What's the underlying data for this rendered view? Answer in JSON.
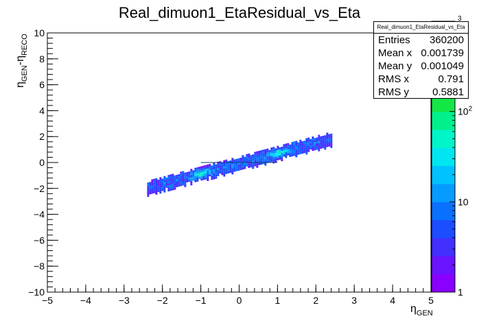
{
  "chart_data": {
    "type": "heatmap",
    "title": "Real_dimuon1_EtaResidual_vs_Eta",
    "xlabel_main": "η",
    "xlabel_sub": "GEN",
    "ylabel_parts": [
      "η",
      "GEN",
      "-η",
      "RECO"
    ],
    "xlim": [
      -5,
      5
    ],
    "ylim": [
      -10,
      10
    ],
    "x_ticks": [
      -5,
      -4,
      -3,
      -2,
      -1,
      0,
      1,
      2,
      3,
      4,
      5
    ],
    "x_tick_labels": [
      "−5",
      "−4",
      "−3",
      "−2",
      "−1",
      "0",
      "1",
      "2",
      "3",
      "4",
      "5"
    ],
    "y_ticks": [
      -10,
      -8,
      -6,
      -4,
      -2,
      0,
      2,
      4,
      6,
      8,
      10
    ],
    "y_tick_labels": [
      "−10",
      "−8",
      "−6",
      "−4",
      "−2",
      "0",
      "2",
      "4",
      "6",
      "8",
      "10"
    ],
    "z_scale": "log",
    "z_range": [
      1,
      1000
    ],
    "z_tick_labels": [
      {
        "value": 1,
        "base": "1",
        "exp": ""
      },
      {
        "value": 10,
        "base": "10",
        "exp": ""
      },
      {
        "value": 100,
        "base": "10",
        "exp": "2"
      },
      {
        "value": 1000,
        "base": "",
        "exp": "3"
      }
    ],
    "distribution": {
      "x_range": [
        -2.4,
        2.4
      ],
      "correlation_slope": 0.79,
      "band_half_width": 0.42,
      "hot_spots_x": [
        -1.0,
        1.0
      ],
      "line_segment": {
        "x": [
          -1.0,
          1.0
        ],
        "y": [
          0.0,
          0.0
        ]
      }
    },
    "palette": [
      "#8a00ff",
      "#6a14ff",
      "#4230ff",
      "#1c4dff",
      "#0a70ff",
      "#069bff",
      "#00c2ff",
      "#00e6f0",
      "#00f5c8",
      "#00f08c",
      "#14e646",
      "#50e61e",
      "#9af014",
      "#d7f50a",
      "#ffff00"
    ]
  },
  "stats": {
    "title": "Real_dimuon1_EtaResidual_vs_Eta",
    "rows": [
      {
        "key": "Entries",
        "value": "360200"
      },
      {
        "key": "Mean x",
        "value": "0.001739"
      },
      {
        "key": "Mean y",
        "value": "0.001049"
      },
      {
        "key": "RMS x",
        "value": "0.791"
      },
      {
        "key": "RMS y",
        "value": "0.5881"
      }
    ]
  }
}
